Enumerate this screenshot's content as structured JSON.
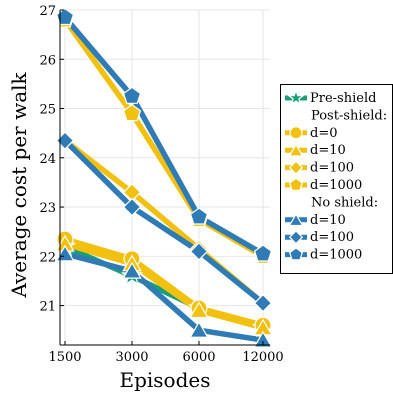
{
  "chart_data": {
    "type": "line",
    "xlabel": "Episodes",
    "ylabel": "Average cost per walk",
    "x": [
      1500,
      3000,
      6000,
      12000
    ],
    "x_tick_labels": [
      "1500",
      "3000",
      "6000",
      "12000"
    ],
    "ylim": [
      20.2,
      27.0
    ],
    "y_ticks": [
      21,
      22,
      23,
      24,
      25,
      26,
      27
    ],
    "grid": true,
    "legend_position": "right",
    "colors": {
      "pre_shield": "#1a9e77",
      "post_shield": "#f2c10f",
      "no_shield": "#2f7bb5"
    },
    "legend": [
      {
        "label": "Pre-shield",
        "series": 0,
        "marker": "star",
        "color": "#1a9e77"
      },
      {
        "label": "Post-shield:",
        "heading": true
      },
      {
        "label": "d=0",
        "series": 1,
        "marker": "circle",
        "color": "#f2c10f"
      },
      {
        "label": "d=10",
        "series": 2,
        "marker": "triangle",
        "color": "#f2c10f"
      },
      {
        "label": "d=100",
        "series": 3,
        "marker": "diamond",
        "color": "#f2c10f"
      },
      {
        "label": "d=1000",
        "series": 4,
        "marker": "pentagon",
        "color": "#f2c10f"
      },
      {
        "label": "No shield:",
        "heading": true
      },
      {
        "label": "d=10",
        "series": 5,
        "marker": "triangle",
        "color": "#2f7bb5"
      },
      {
        "label": "d=100",
        "series": 6,
        "marker": "diamond",
        "color": "#2f7bb5"
      },
      {
        "label": "d=1000",
        "series": 7,
        "marker": "pentagon",
        "color": "#2f7bb5"
      }
    ],
    "series": [
      {
        "name": "Pre-shield",
        "marker": "star",
        "color": "#1a9e77",
        "values": [
          22.2,
          21.6,
          20.95,
          20.55
        ]
      },
      {
        "name": "d=0",
        "marker": "circle",
        "color": "#f2c10f",
        "values": [
          22.35,
          21.95,
          20.95,
          20.6
        ]
      },
      {
        "name": "d=10",
        "marker": "triangle",
        "color": "#f2c10f",
        "values": [
          22.25,
          21.85,
          20.9,
          20.55
        ]
      },
      {
        "name": "d=100",
        "marker": "diamond",
        "color": "#f2c10f",
        "values": [
          24.35,
          23.3,
          22.15,
          21.05
        ]
      },
      {
        "name": "d=1000",
        "marker": "pentagon",
        "color": "#f2c10f",
        "values": [
          26.8,
          24.9,
          22.75,
          22.0
        ]
      },
      {
        "name": "d=10",
        "marker": "triangle",
        "color": "#2f7bb5",
        "values": [
          22.05,
          21.7,
          20.5,
          20.3
        ]
      },
      {
        "name": "d=100",
        "marker": "diamond",
        "color": "#2f7bb5",
        "values": [
          24.35,
          23.0,
          22.1,
          21.05
        ]
      },
      {
        "name": "d=1000",
        "marker": "pentagon",
        "color": "#2f7bb5",
        "values": [
          26.85,
          25.25,
          22.8,
          22.05
        ]
      }
    ]
  }
}
